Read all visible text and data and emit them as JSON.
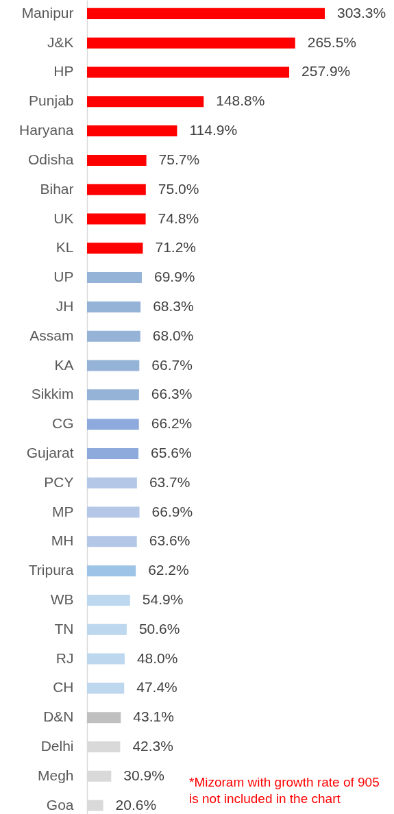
{
  "chart_data": {
    "type": "bar",
    "orientation": "horizontal",
    "categories": [
      "Manipur",
      "J&K",
      "HP",
      "Punjab",
      "Haryana",
      "Odisha",
      "Bihar",
      "UK",
      "KL",
      "UP",
      "JH",
      "Assam",
      "KA",
      "Sikkim",
      "CG",
      "Gujarat",
      "PCY",
      "MP",
      "MH",
      "Tripura",
      "WB",
      "TN",
      "RJ",
      "CH",
      "D&N",
      "Delhi",
      "Megh",
      "Goa"
    ],
    "values": [
      303.3,
      265.5,
      257.9,
      148.8,
      114.9,
      75.7,
      75.0,
      74.8,
      71.2,
      69.9,
      68.3,
      68.0,
      66.7,
      66.3,
      66.2,
      65.6,
      63.7,
      66.9,
      63.6,
      62.2,
      54.9,
      50.6,
      48.0,
      47.4,
      43.1,
      42.3,
      30.9,
      20.6
    ],
    "value_labels": [
      "303.3%",
      "265.5%",
      "257.9%",
      "148.8%",
      "114.9%",
      "75.7%",
      "75.0%",
      "74.8%",
      "71.2%",
      "69.9%",
      "68.3%",
      "68.0%",
      "66.7%",
      "66.3%",
      "66.2%",
      "65.6%",
      "63.7%",
      "66.9%",
      "63.6%",
      "62.2%",
      "54.9%",
      "50.6%",
      "48.0%",
      "47.4%",
      "43.1%",
      "42.3%",
      "30.9%",
      "20.6%"
    ],
    "colors": [
      "#ff0000",
      "#ff0000",
      "#ff0000",
      "#ff0000",
      "#ff0000",
      "#ff0000",
      "#ff0000",
      "#ff0000",
      "#ff0000",
      "#95b3d7",
      "#95b3d7",
      "#95b3d7",
      "#95b3d7",
      "#95b3d7",
      "#8eaadc",
      "#8eaadc",
      "#b4c7e7",
      "#b4c7e7",
      "#b4c7e7",
      "#9dc3e6",
      "#bdd7ee",
      "#bdd7ee",
      "#bdd7ee",
      "#bdd7ee",
      "#bfbfbf",
      "#d9d9d9",
      "#d9d9d9",
      "#d9d9d9"
    ],
    "annotations": [
      "*Mizoram with growth rate of 905",
      "is not included in the chart"
    ]
  }
}
